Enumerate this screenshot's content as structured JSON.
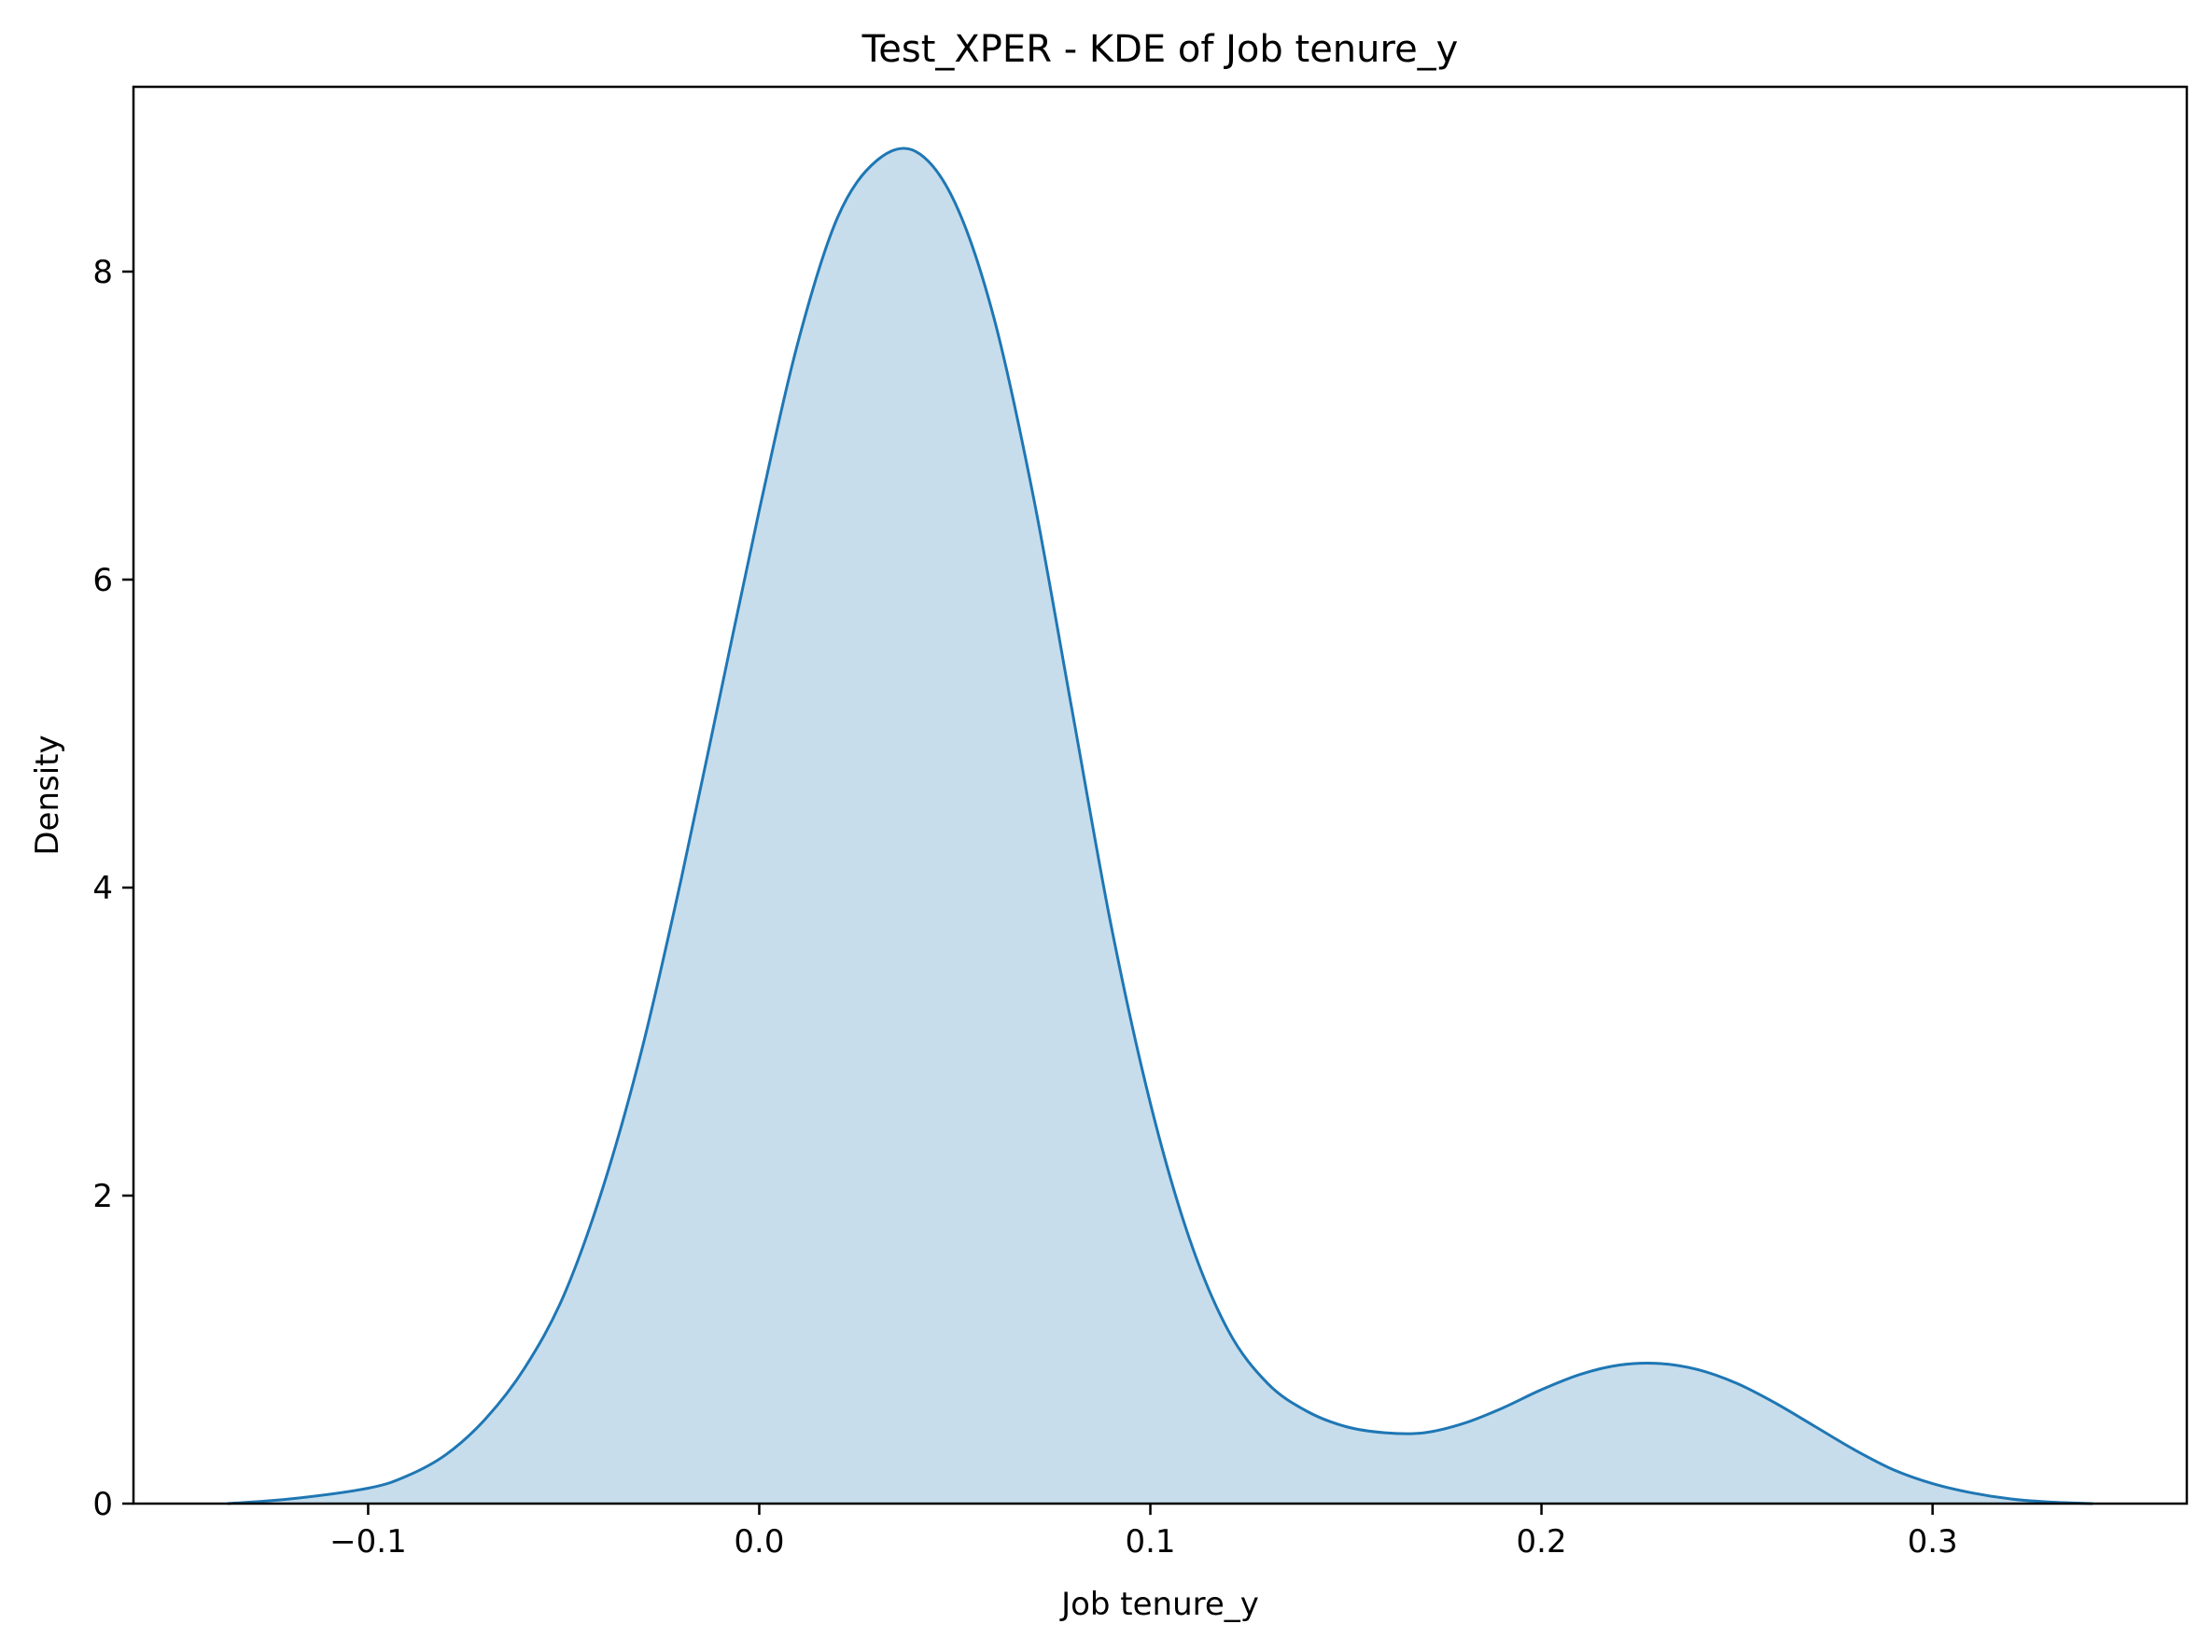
{
  "chart_data": {
    "type": "area",
    "title": "Test_XPER - KDE of Job tenure_y",
    "xlabel": "Job tenure_y",
    "ylabel": "Density",
    "xlim": [
      -0.16,
      0.365
    ],
    "ylim": [
      0,
      9.2
    ],
    "xticks": [
      -0.1,
      0.0,
      0.1,
      0.2,
      0.3
    ],
    "xtick_labels": [
      "−0.1",
      "0.0",
      "0.1",
      "0.2",
      "0.3"
    ],
    "yticks": [
      0,
      2,
      4,
      6,
      8
    ],
    "ytick_labels": [
      "0",
      "2",
      "4",
      "6",
      "8"
    ],
    "grid": false,
    "legend": "none",
    "line_color": "#1f77b4",
    "fill_color": "#1f77b4",
    "fill_alpha": 0.25,
    "series": [
      {
        "x": [
          -0.136,
          -0.12,
          -0.1,
          -0.09,
          -0.08,
          -0.07,
          -0.06,
          -0.05,
          -0.04,
          -0.03,
          -0.02,
          -0.01,
          0.0,
          0.01,
          0.02,
          0.03,
          0.04,
          0.05,
          0.06,
          0.07,
          0.08,
          0.09,
          0.1,
          0.11,
          0.12,
          0.13,
          0.14,
          0.15,
          0.16,
          0.17,
          0.18,
          0.19,
          0.2,
          0.21,
          0.22,
          0.23,
          0.24,
          0.25,
          0.26,
          0.27,
          0.28,
          0.29,
          0.3,
          0.31,
          0.32,
          0.33,
          0.341
        ],
        "y": [
          0.0,
          0.03,
          0.1,
          0.18,
          0.32,
          0.55,
          0.88,
          1.35,
          2.05,
          2.95,
          4.05,
          5.25,
          6.45,
          7.55,
          8.35,
          8.72,
          8.78,
          8.45,
          7.7,
          6.55,
          5.15,
          3.75,
          2.6,
          1.72,
          1.12,
          0.78,
          0.6,
          0.5,
          0.46,
          0.46,
          0.52,
          0.62,
          0.74,
          0.84,
          0.9,
          0.91,
          0.87,
          0.78,
          0.65,
          0.5,
          0.35,
          0.22,
          0.13,
          0.07,
          0.03,
          0.01,
          0.0
        ]
      }
    ]
  }
}
